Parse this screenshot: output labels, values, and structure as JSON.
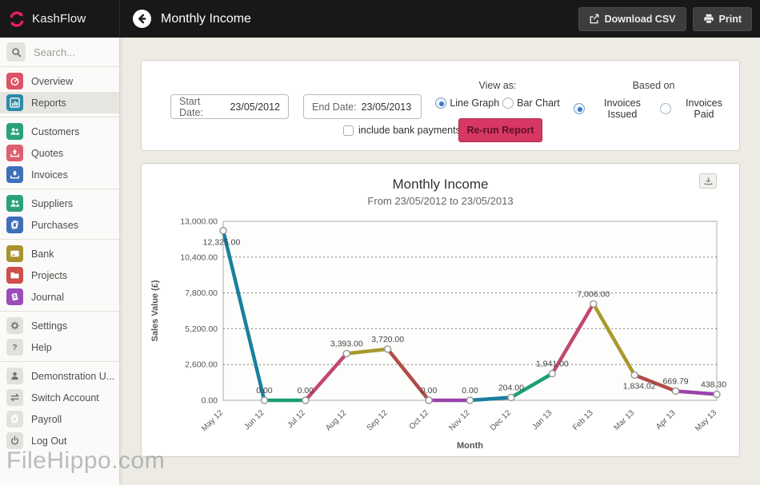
{
  "topbar": {
    "brand": "KashFlow",
    "title": "Monthly Income",
    "download_csv_label": "Download CSV",
    "print_label": "Print"
  },
  "sidebar": {
    "search_placeholder": "Search...",
    "groups": [
      {
        "items": [
          {
            "label": "Overview",
            "icon": "gauge-icon",
            "color": "#dc5365",
            "selected": false
          },
          {
            "label": "Reports",
            "icon": "bar-chart-icon",
            "color": "#2b8aa9",
            "selected": true
          }
        ]
      },
      {
        "items": [
          {
            "label": "Customers",
            "icon": "people-icon",
            "color": "#29a27b",
            "selected": false
          },
          {
            "label": "Quotes",
            "icon": "tray-up-icon",
            "color": "#dd6071",
            "selected": false
          },
          {
            "label": "Invoices",
            "icon": "tray-down-icon",
            "color": "#3e6fb9",
            "selected": false
          }
        ]
      },
      {
        "items": [
          {
            "label": "Suppliers",
            "icon": "people-icon",
            "color": "#29a27b",
            "selected": false
          },
          {
            "label": "Purchases",
            "icon": "documents-icon",
            "color": "#3e6fb9",
            "selected": false
          }
        ]
      },
      {
        "items": [
          {
            "label": "Bank",
            "icon": "card-icon",
            "color": "#a8922d",
            "selected": false
          },
          {
            "label": "Projects",
            "icon": "folder-icon",
            "color": "#cc4f4c",
            "selected": false
          },
          {
            "label": "Journal",
            "icon": "book-icon",
            "color": "#9a4dbb",
            "selected": false
          }
        ]
      },
      {
        "items": [
          {
            "label": "Settings",
            "icon": "gear-icon",
            "color": "",
            "selected": false
          },
          {
            "label": "Help",
            "icon": "question-icon",
            "color": "",
            "selected": false
          }
        ]
      },
      {
        "items": [
          {
            "label": "Demonstration U...",
            "icon": "person-icon",
            "color": "",
            "selected": false
          },
          {
            "label": "Switch Account",
            "icon": "switch-icon",
            "color": "",
            "selected": false
          },
          {
            "label": "Payroll",
            "icon": "documents-icon",
            "color": "",
            "selected": false
          },
          {
            "label": "Log Out",
            "icon": "power-icon",
            "color": "",
            "selected": false
          }
        ]
      }
    ]
  },
  "filters": {
    "start_date_label": "Start Date:",
    "start_date_value": "23/05/2012",
    "end_date_label": "End Date:",
    "end_date_value": "23/05/2013",
    "view_as_label": "View as:",
    "view_as_options": [
      "Line Graph",
      "Bar Chart"
    ],
    "view_as_selected": "Line Graph",
    "based_on_label": "Based on",
    "based_on_options": [
      "Invoices Issued",
      "Invoices Paid"
    ],
    "based_on_selected": "Invoices Issued",
    "include_bank_payments_label": "include bank payments",
    "include_bank_payments_checked": false,
    "rerun_label": "Re-run Report"
  },
  "chart_data": {
    "type": "line",
    "title": "Monthly Income",
    "subtitle": "From 23/05/2012 to 23/05/2013",
    "xlabel": "Month",
    "ylabel": "Sales Value (£)",
    "ylim": [
      0,
      13000
    ],
    "ytick_interval": 2600,
    "ytick_labels": [
      "0.00",
      "2,600.00",
      "5,200.00",
      "7,800.00",
      "10,400.00",
      "13,000.00"
    ],
    "grid": "horizontal-dashed",
    "legend": "none",
    "categories": [
      "May 12",
      "Jun 12",
      "Jul 12",
      "Aug 12",
      "Sep 12",
      "Oct 12",
      "Nov 12",
      "Dec 12",
      "Jan 13",
      "Feb 13",
      "Mar 13",
      "Apr 13",
      "May 13"
    ],
    "values": [
      12325,
      0,
      0,
      3393,
      3720,
      0,
      0,
      204,
      1941,
      7006,
      1834.02,
      669.79,
      438.3
    ],
    "point_labels": [
      "12,325.00",
      "0.00",
      "0.00",
      "3,393.00",
      "3,720.00",
      "0.00",
      "0.00",
      "204.00",
      "1,941.00",
      "7,006.00",
      "1,834.02",
      "669.79",
      "438.30"
    ],
    "segment_colors": [
      "#1a7f9e",
      "#199e74",
      "#c2486e",
      "#a8992b",
      "#b14b47",
      "#9941ab"
    ]
  },
  "watermark": "FileHippo.com"
}
